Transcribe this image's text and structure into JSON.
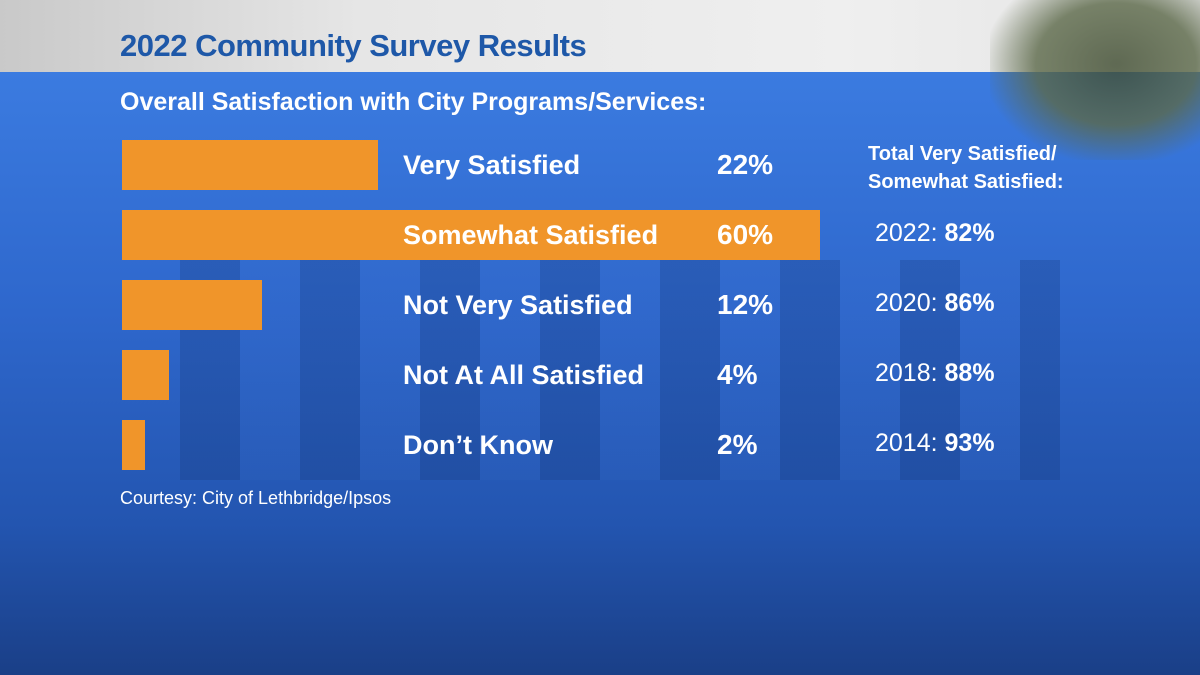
{
  "title": "2022 Community Survey Results",
  "chart_data": {
    "type": "bar",
    "orientation": "horizontal",
    "title": "Overall Satisfaction with City Programs/Services:",
    "categories": [
      "Very Satisfied",
      "Somewhat Satisfied",
      "Not Very Satisfied",
      "Not At All Satisfied",
      "Don’t Know"
    ],
    "values": [
      22,
      60,
      12,
      4,
      2
    ],
    "value_labels": [
      "22%",
      "60%",
      "12%",
      "4%",
      "2%"
    ],
    "unit": "%",
    "bar_color": "#f0952a",
    "grid": false
  },
  "totals": {
    "header_line1": "Total Very Satisfied/",
    "header_line2": "Somewhat Satisfied:",
    "rows": [
      {
        "year": "2022:",
        "value": "82%"
      },
      {
        "year": "2020:",
        "value": "86%"
      },
      {
        "year": "2018:",
        "value": "88%"
      },
      {
        "year": "2014:",
        "value": "93%"
      }
    ]
  },
  "source": "Courtesy: City of Lethbridge/Ipsos",
  "colors": {
    "title": "#1e58a8",
    "panel": "#2e67cc",
    "bar": "#f0952a"
  }
}
